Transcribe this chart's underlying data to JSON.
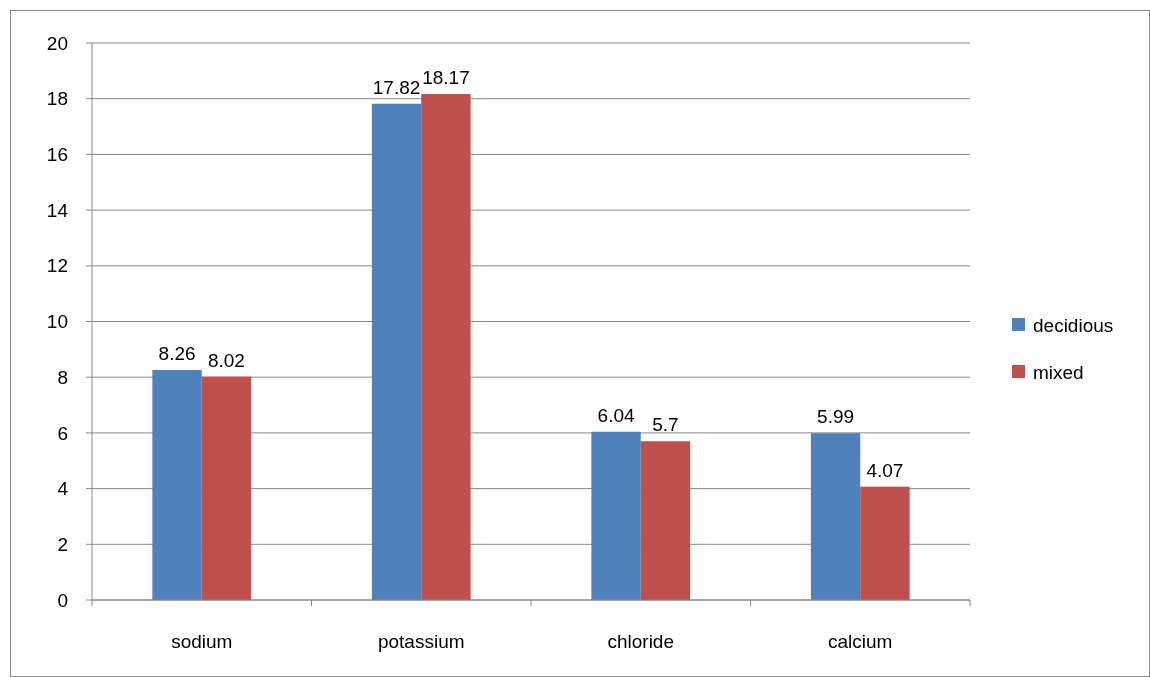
{
  "chart_data": {
    "type": "bar",
    "categories": [
      "sodium",
      "potassium",
      "chloride",
      "calcium"
    ],
    "series": [
      {
        "name": "decidious",
        "color": "#4f81bd",
        "values": [
          8.26,
          17.82,
          6.04,
          5.99
        ]
      },
      {
        "name": "mixed",
        "color": "#c0504d",
        "values": [
          8.02,
          18.17,
          5.7,
          4.07
        ]
      }
    ],
    "ylim": [
      0,
      20
    ],
    "yticks": [
      0,
      2,
      4,
      6,
      8,
      10,
      12,
      14,
      16,
      18,
      20
    ],
    "grid": "y",
    "legend": "right",
    "data_labels": true
  }
}
